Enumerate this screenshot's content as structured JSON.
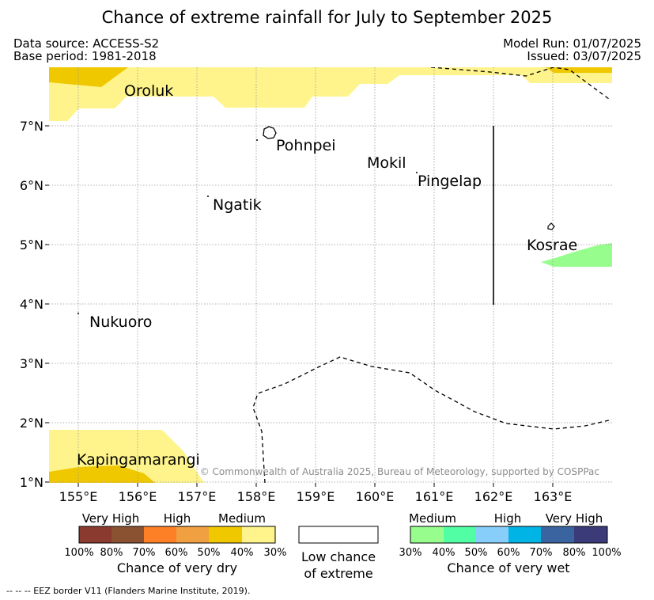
{
  "title": "Chance of extreme rainfall for July to September 2025",
  "data_source": "Data source: ACCESS-S2",
  "base_period": "Base period: 1981-2018",
  "model_run": "Model Run: 01/07/2025",
  "issued": "Issued: 03/07/2025",
  "map": {
    "lon_ticks": [
      "155°E",
      "156°E",
      "157°E",
      "158°E",
      "159°E",
      "160°E",
      "161°E",
      "162°E",
      "163°E"
    ],
    "lat_ticks": [
      "1°N",
      "2°N",
      "3°N",
      "4°N",
      "5°N",
      "6°N",
      "7°N"
    ],
    "places": [
      "Oroluk",
      "Pohnpei",
      "Mokil",
      "Pingelap",
      "Ngatik",
      "Kosrae",
      "Nukuoro",
      "Kapingamarangi"
    ],
    "copyright": "© Commonwealth of Australia 2025, Bureau of Meteorology, supported by COSPPac",
    "colors": {
      "dry_medium_30_40": "#fef48b",
      "dry_medium_40_50": "#f0c800",
      "wet_medium_30_40": "#97fe8e"
    }
  },
  "legend": {
    "dry": {
      "labels": [
        "Very High",
        "High",
        "Medium"
      ],
      "colors": [
        "#8b3a2f",
        "#8b5232",
        "#fe8026",
        "#f0a040",
        "#f0c800",
        "#fef48b"
      ],
      "ticks": [
        "100%",
        "80%",
        "70%",
        "60%",
        "50%",
        "40%",
        "30%"
      ],
      "caption": "Chance of very dry"
    },
    "low": {
      "caption_line1": "Low chance",
      "caption_line2": "of extreme"
    },
    "wet": {
      "labels": [
        "Medium",
        "High",
        "Very High"
      ],
      "colors": [
        "#97fe8e",
        "#52fea4",
        "#87cefa",
        "#00b4e6",
        "#3a64a0",
        "#3c3b7a"
      ],
      "ticks": [
        "30%",
        "40%",
        "50%",
        "60%",
        "70%",
        "80%",
        "100%"
      ],
      "caption": "Chance of very wet"
    }
  },
  "footnote": "-- -- -- EEZ border V11 (Flanders Marine Institute, 2019)."
}
